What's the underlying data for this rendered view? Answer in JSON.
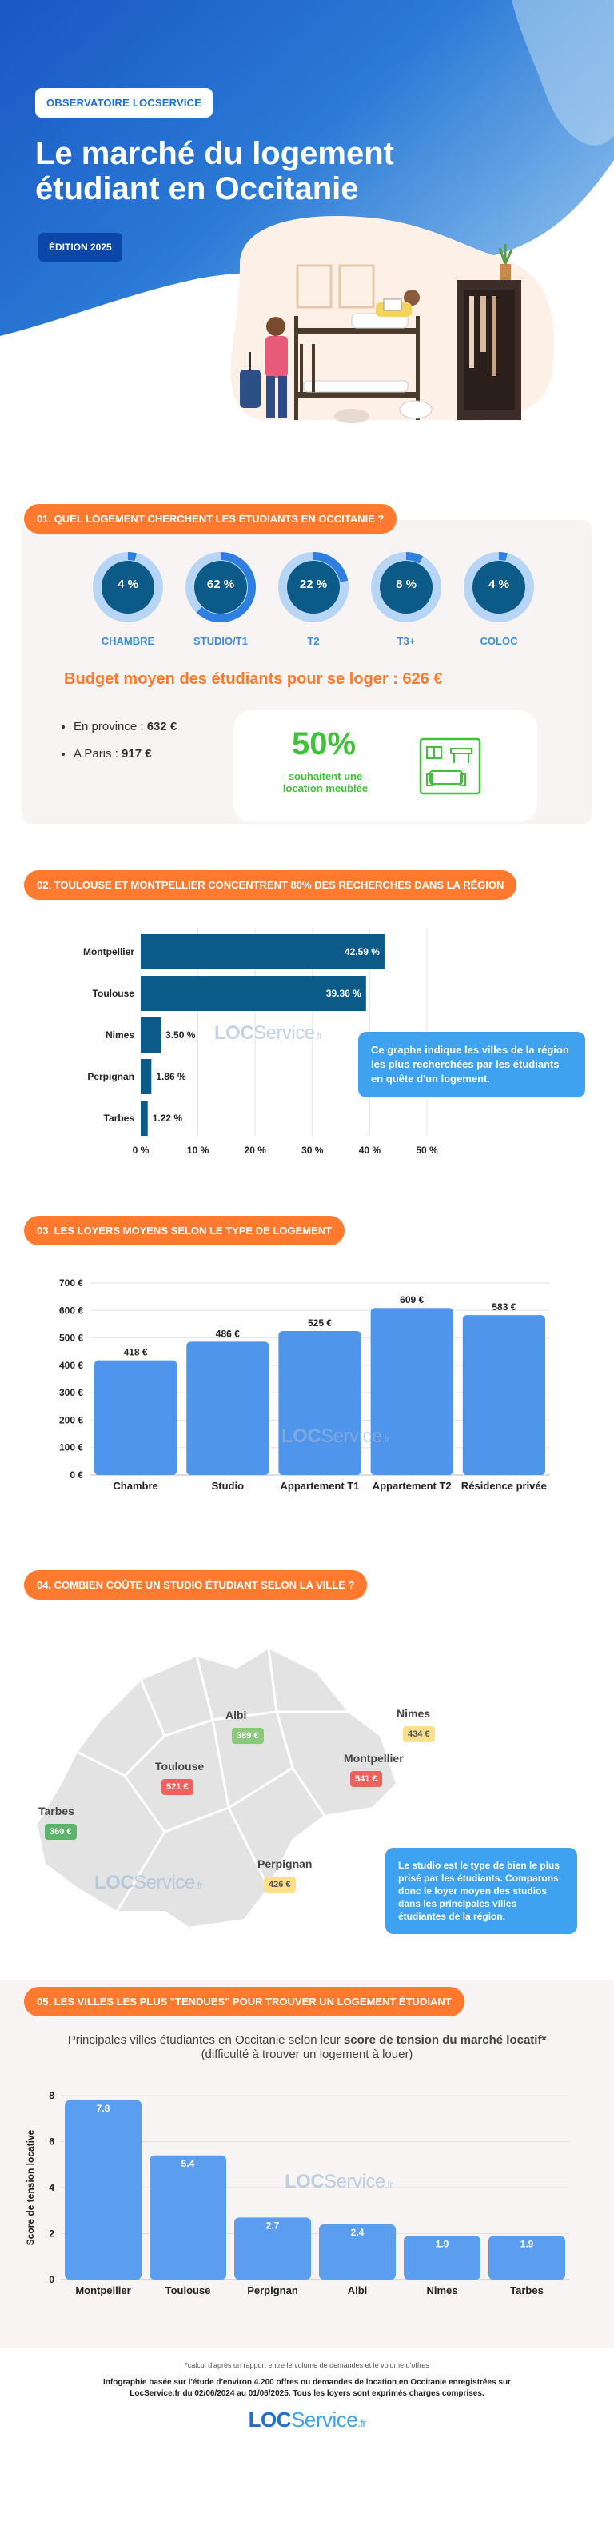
{
  "hero": {
    "brand": "OBSERVATOIRE LOCSERVICE",
    "title_line1": "Le marché du logement",
    "title_line2": "étudiant en Occitanie",
    "edition": "ÉDITION 2025",
    "colors": {
      "blue": "#1f6fd1",
      "dark_blue": "#0a47a8",
      "orange": "#ff7a2e"
    }
  },
  "section1": {
    "title": "01. QUEL LOGEMENT CHERCHENT LES ÉTUDIANTS EN OCCITANIE ?",
    "donuts": [
      {
        "label": "CHAMBRE",
        "value": "4 %",
        "pct": 4
      },
      {
        "label": "STUDIO/T1",
        "value": "62 %",
        "pct": 62
      },
      {
        "label": "T2",
        "value": "22 %",
        "pct": 22
      },
      {
        "label": "T3+",
        "value": "8 %",
        "pct": 8
      },
      {
        "label": "COLOC",
        "value": "4 %",
        "pct": 4
      }
    ],
    "budget": "Budget moyen des étudiants pour se loger : 626 €",
    "bullet1_label": "En province : ",
    "bullet1_value": "632 €",
    "bullet2_label": "A Paris : ",
    "bullet2_value": "917 €",
    "furnished_pct": "50%",
    "furnished_line1": "souhaitent une",
    "furnished_line2": "location meublée",
    "icon": "furnished-apartment-icon"
  },
  "section2": {
    "title": "02. TOULOUSE ET MONTPELLIER CONCENTRENT 80% DES RECHERCHES DANS LA RÉGION",
    "callout": "Ce graphe indique les villes de la région les plus recherchées par les étudiants en quête d'un logement.",
    "watermark_a": "LOC",
    "watermark_b": "Service",
    "watermark_fr": ".fr"
  },
  "section3": {
    "title": "03. LES LOYERS MOYENS SELON LE TYPE DE LOGEMENT"
  },
  "section4": {
    "title": "04. COMBIEN COÛTE UN STUDIO ÉTUDIANT SELON LA VILLE ?",
    "callout": "Le studio est le type de bien le plus prisé par les étudiants. Comparons donc le loyer moyen des studios dans les principales villes étudiantes de la région.",
    "cities": [
      {
        "name": "Albi",
        "price": "389 €",
        "color": "#8bc97a"
      },
      {
        "name": "Nimes",
        "price": "434 €",
        "color": "#ffe08a"
      },
      {
        "name": "Montpellier",
        "price": "541 €",
        "color": "#f0615e"
      },
      {
        "name": "Toulouse",
        "price": "521 €",
        "color": "#f0615e"
      },
      {
        "name": "Tarbes",
        "price": "360 €",
        "color": "#5cb36a"
      },
      {
        "name": "Perpignan",
        "price": "426 €",
        "color": "#ffe08a"
      }
    ]
  },
  "section5": {
    "title": "05. LES VILLES LES PLUS \"TENDUES\" POUR TROUVER UN LOGEMENT ÉTUDIANT",
    "subtitle_a": "Principales villes étudiantes en Occitanie selon leur ",
    "subtitle_b": "score de tension du marché locatif*",
    "subtitle_c": "(difficulté à trouver un logement à louer)"
  },
  "footer": {
    "note": "*calcul d'après un rapport entre le volume de demandes et le volume d'offres",
    "line1": "Infographie basée sur l'étude d'environ 4.200 offres ou demandes de location en Occitanie enregistrées sur",
    "line2": "LocService.fr du 02/06/2024 au 01/06/2025. Tous les loyers sont exprimés charges comprises.",
    "logo_a": "LOC",
    "logo_b": "Service",
    "logo_fr": ".fr"
  },
  "chart_data": [
    {
      "type": "bar",
      "orientation": "horizontal",
      "categories": [
        "Montpellier",
        "Toulouse",
        "Nimes",
        "Perpignan",
        "Tarbes"
      ],
      "values": [
        42.59,
        39.36,
        3.5,
        1.86,
        1.22
      ],
      "value_labels": [
        "42.59 %",
        "39.36 %",
        "3.50 %",
        "1.86 %",
        "1.22 %"
      ],
      "xticks": [
        "0 %",
        "10 %",
        "20 %",
        "30 %",
        "40 %",
        "50 %"
      ],
      "xlim": [
        0,
        50
      ],
      "color": "#0c5a87"
    },
    {
      "type": "bar",
      "categories": [
        "Chambre",
        "Studio",
        "Appartement T1",
        "Appartement T2",
        "Résidence privée"
      ],
      "values": [
        418,
        486,
        525,
        609,
        583
      ],
      "value_labels": [
        "418 €",
        "486 €",
        "525 €",
        "609 €",
        "583 €"
      ],
      "yticks": [
        "0 €",
        "100 €",
        "200 €",
        "300 €",
        "400 €",
        "500 €",
        "600 €",
        "700 €"
      ],
      "ylim": [
        0,
        700
      ],
      "color": "#4f95ec"
    },
    {
      "type": "bar",
      "categories": [
        "Montpellier",
        "Toulouse",
        "Perpignan",
        "Albi",
        "Nimes",
        "Tarbes"
      ],
      "values": [
        7.8,
        5.4,
        2.7,
        2.4,
        1.9,
        1.9
      ],
      "value_labels": [
        "7.8",
        "5.4",
        "2.7",
        "2.4",
        "1.9",
        "1.9"
      ],
      "yticks": [
        "0",
        "2",
        "4",
        "6",
        "8"
      ],
      "ylim": [
        0,
        8
      ],
      "ylabel": "Score de tension locative",
      "color": "#5b9ef0"
    }
  ]
}
